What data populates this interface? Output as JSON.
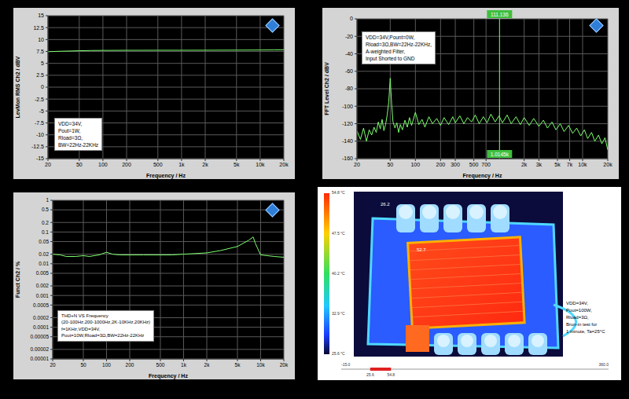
{
  "chart_data": [
    {
      "type": "line",
      "y_label": "LevMon RMS Ch2 / dBV",
      "x_label": "Frequency / Hz",
      "log": "x",
      "grid": true,
      "color": "#7dff6e",
      "xlim": [
        20,
        20000
      ],
      "xticks": [
        20,
        50,
        100,
        200,
        500,
        {
          "value": 1000,
          "label": "1k"
        },
        {
          "value": 2000,
          "label": "2k"
        },
        {
          "value": 5000,
          "label": "5k"
        },
        {
          "value": 10000,
          "label": "10k"
        },
        {
          "value": 20000,
          "label": "20k"
        }
      ],
      "ylim": [
        -15,
        15
      ],
      "yticks": [
        -15,
        -12.5,
        -10,
        -7.5,
        -5,
        -2.5,
        0,
        2.5,
        5,
        7.5,
        10,
        12.5,
        15
      ],
      "x": [
        20,
        30,
        40,
        50,
        70,
        100,
        200,
        500,
        1000,
        2000,
        5000,
        10000,
        15000,
        20000
      ],
      "values": [
        7.45,
        7.55,
        7.6,
        7.65,
        7.7,
        7.72,
        7.74,
        7.75,
        7.75,
        7.76,
        7.78,
        7.8,
        7.82,
        7.85
      ],
      "annotation": [
        "VDD=34V,",
        "Pout=1W,",
        "Rload=3Ω,",
        "BW=22Hz-22KHz"
      ]
    },
    {
      "type": "line",
      "y_label": "FFT Level Ch2 / dBV",
      "x_label": "Frequency / Hz",
      "log": "x",
      "grid": true,
      "color": "#7dff6e",
      "xlim": [
        20,
        20000
      ],
      "xticks": [
        20,
        50,
        100,
        200,
        300,
        500,
        700,
        {
          "value": 2000,
          "label": "2k"
        },
        {
          "value": 3000,
          "label": "3k"
        },
        {
          "value": 5000,
          "label": "5k"
        },
        {
          "value": 7000,
          "label": "7k"
        },
        {
          "value": 10000,
          "label": "10k"
        },
        {
          "value": 20000,
          "label": "20k"
        }
      ],
      "ylim": [
        -160,
        0
      ],
      "yticks": [
        -160,
        -140,
        -120,
        -100,
        -80,
        -60,
        -40,
        -20,
        0
      ],
      "x": [
        20,
        22,
        24,
        26,
        28,
        30,
        32,
        34,
        36,
        38,
        40,
        42,
        44,
        46,
        48,
        50,
        52,
        54,
        57,
        60,
        63,
        66,
        70,
        75,
        80,
        85,
        90,
        100,
        110,
        120,
        130,
        145,
        160,
        180,
        200,
        220,
        250,
        280,
        300,
        340,
        380,
        420,
        470,
        520,
        580,
        650,
        720,
        800,
        900,
        1000,
        1100,
        1250,
        1400,
        1600,
        1800,
        2000,
        2300,
        2600,
        3000,
        3400,
        3800,
        4300,
        4800,
        5400,
        6000,
        6800,
        7600,
        8500,
        9500,
        10500,
        11500,
        12800,
        14000,
        15500,
        17000,
        18500,
        20000
      ],
      "values": [
        -128,
        -138,
        -125,
        -140,
        -127,
        -133,
        -124,
        -130,
        -118,
        -126,
        -115,
        -128,
        -121,
        -110,
        -95,
        -68,
        -98,
        -118,
        -125,
        -119,
        -130,
        -121,
        -127,
        -116,
        -124,
        -113,
        -122,
        -107,
        -121,
        -115,
        -124,
        -112,
        -120,
        -114,
        -122,
        -113,
        -121,
        -112,
        -119,
        -111,
        -120,
        -113,
        -118,
        -110,
        -120,
        -112,
        -119,
        -109,
        -118,
        -111,
        -119,
        -110,
        -120,
        -112,
        -121,
        -113,
        -122,
        -114,
        -123,
        -116,
        -125,
        -118,
        -127,
        -120,
        -129,
        -122,
        -131,
        -125,
        -134,
        -127,
        -137,
        -130,
        -140,
        -133,
        -143,
        -136,
        -150
      ],
      "cursor": {
        "x": 1014.5,
        "top_label": "111.136",
        "bottom_label": "1.0145k"
      },
      "annotation": [
        "VDD=34V,Pount=0W,",
        "Rload=3Ω,BW=22Hz-22KHz,",
        "A-weighted Filter,",
        "Input Shorted to GND"
      ]
    },
    {
      "type": "line",
      "y_label": "Funct Ch2 / %",
      "x_label": "Frequency / Hz",
      "log": true,
      "grid": true,
      "color": "#7dff6e",
      "xlim": [
        20,
        20000
      ],
      "xticks": [
        20,
        50,
        100,
        200,
        500,
        {
          "value": 1000,
          "label": "1k"
        },
        {
          "value": 2000,
          "label": "2k"
        },
        {
          "value": 5000,
          "label": "5k"
        },
        {
          "value": 10000,
          "label": "10k"
        },
        {
          "value": 20000,
          "label": "20k"
        }
      ],
      "ylim": [
        1e-05,
        1
      ],
      "yticks": [
        1e-05,
        2e-05,
        5e-05,
        0.0001,
        0.0002,
        0.0005,
        0.001,
        0.002,
        0.005,
        0.01,
        0.02,
        0.05,
        0.1,
        0.2,
        0.5,
        1
      ],
      "x": [
        20,
        25,
        30,
        40,
        50,
        60,
        80,
        100,
        120,
        150,
        200,
        300,
        500,
        700,
        1000,
        2000,
        3000,
        5000,
        7000,
        8000,
        8500,
        10000,
        15000,
        20000
      ],
      "values": [
        0.02,
        0.019,
        0.017,
        0.017,
        0.018,
        0.017,
        0.019,
        0.023,
        0.02,
        0.019,
        0.019,
        0.019,
        0.019,
        0.019,
        0.02,
        0.022,
        0.026,
        0.035,
        0.055,
        0.07,
        0.045,
        0.019,
        0.017,
        0.016
      ],
      "annotation": [
        "THD+N VS Frequency",
        "(20-100Hz,200-1000Hz,2K-10KHz,20KHz)",
        "f=1KHz,VDD=34V,",
        "Pout=10W,Rload=3Ω,BW=22Hz-22KHz"
      ]
    }
  ],
  "thermal_image": {
    "color_bar": {
      "range": [
        25.6,
        54.8
      ],
      "ticks": [
        {
          "value": 54.8,
          "label": "54.8 °C"
        },
        {
          "value": 47.5,
          "label": "47.5 °C"
        },
        {
          "value": 40.2,
          "label": "40.2 °C"
        },
        {
          "value": 32.9,
          "label": "32.9 °C"
        },
        {
          "value": 25.6,
          "label": "25.6 °C"
        }
      ]
    },
    "spots": [
      {
        "value": 26.2
      },
      {
        "value": 52.7
      }
    ],
    "scale_bar": {
      "range": [
        {
          "value": -15,
          "label": "-15.0"
        },
        {
          "value": 360,
          "label": "360.0"
        }
      ],
      "span": [
        25.6,
        54.8
      ]
    },
    "notes": [
      "VDD=34V,",
      "Pout=100W,",
      "Rload=3Ω,",
      "Brun-in test for",
      "1 minute, Ta=25°C"
    ]
  }
}
